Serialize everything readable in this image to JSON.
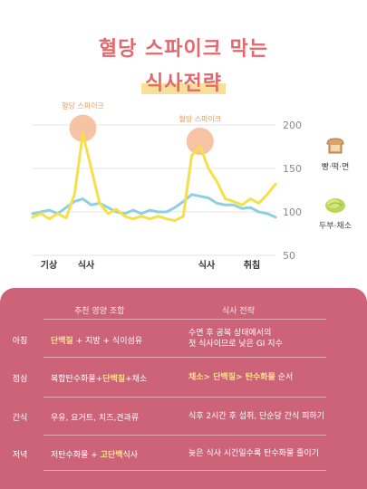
{
  "title": {
    "line1": "혈당 스파이크 막는",
    "line2": "식사전략"
  },
  "chart_data": {
    "type": "line",
    "yticks": [
      "200",
      "150",
      "100",
      "50"
    ],
    "ylim": [
      50,
      200
    ],
    "xlabels": [
      "기상",
      "식사",
      "식사",
      "취침"
    ],
    "annotations": [
      "혈당 스파이크",
      "혈당 스파이크"
    ],
    "series": [
      {
        "name": "빵·떡·면",
        "color": "#f5e04a",
        "values": [
          94,
          98,
          92,
          98,
          93,
          120,
          190,
          150,
          110,
          98,
          103,
          95,
          92,
          95,
          92,
          95,
          92,
          90,
          95,
          165,
          175,
          150,
          135,
          115,
          112,
          108,
          115,
          110,
          120,
          132
        ]
      },
      {
        "name": "두부·채소",
        "color": "#8fd0df",
        "values": [
          98,
          100,
          102,
          98,
          105,
          112,
          115,
          108,
          110,
          105,
          100,
          98,
          102,
          98,
          102,
          100,
          100,
          105,
          112,
          120,
          118,
          116,
          110,
          108,
          108,
          104,
          105,
          100,
          98,
          94
        ]
      }
    ]
  },
  "legend": {
    "bread": "빵·떡·면",
    "tofu": "두부·채소"
  },
  "panel": {
    "header_combo": "추천 영양 조합",
    "header_strategy": "식사 전략",
    "rows": [
      {
        "meal": "아침",
        "combo_hl": "단백질",
        "combo_rest": " + 지방 + 식이섬유",
        "strategy_line1": "수면 후 공복 상태에서의",
        "strategy_line2": "첫 식사이므로 낮은 GI 지수"
      },
      {
        "meal": "점심",
        "combo_pre": "복합탄수화물+",
        "combo_hl": "단백질",
        "combo_post": "+채소",
        "strategy_hl": "채소> 단백질> 탄수화물",
        "strategy_rest": " 순서"
      },
      {
        "meal": "간식",
        "combo": "우유, 요거트, 치즈,견과류",
        "strategy": "식후 2시간 후 섭취, 단순당 간식 피하기"
      },
      {
        "meal": "저녁",
        "combo_pre": "저탄수화물 + ",
        "combo_hl": "고단백",
        "combo_post": "식사",
        "strategy": "늦은 식사 시간일수록 탄수화물 줄이기"
      }
    ]
  }
}
